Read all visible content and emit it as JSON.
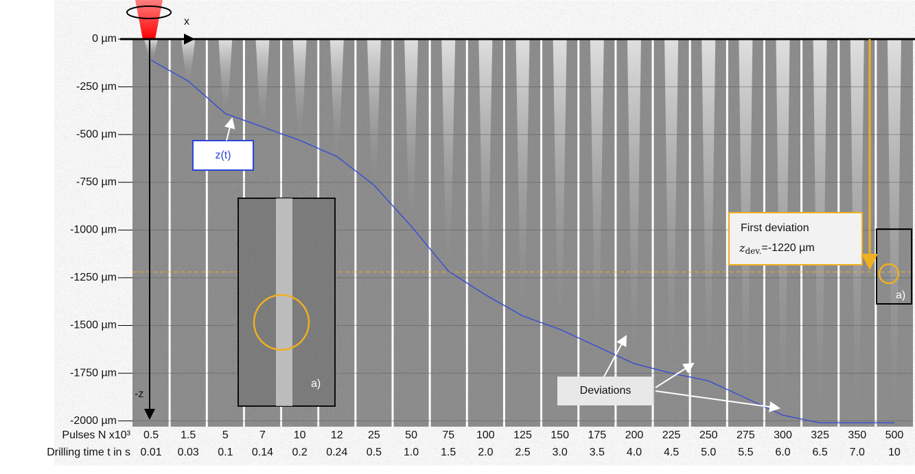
{
  "chart_data": {
    "type": "line",
    "x_row_label": "Pulses N x10³",
    "x_row2_label": "Drilling time t in s",
    "categories": [
      "0.5",
      "1.5",
      "5",
      "7",
      "10",
      "12",
      "25",
      "50",
      "75",
      "100",
      "125",
      "150",
      "175",
      "200",
      "225",
      "250",
      "275",
      "300",
      "325",
      "350",
      "500"
    ],
    "drilling_time": [
      "0.01",
      "0.03",
      "0.1",
      "0.14",
      "0.2",
      "0.24",
      "0.5",
      "1.0",
      "1.5",
      "2.0",
      "2.5",
      "3.0",
      "3.5",
      "4.0",
      "4.5",
      "5.0",
      "5.5",
      "6.0",
      "6.5",
      "7.0",
      "10"
    ],
    "series": [
      {
        "name": "z(t)",
        "color": "#3a4fd0",
        "values": [
          -110,
          -220,
          -390,
          -460,
          -530,
          -615,
          -765,
          -980,
          -1215,
          -1340,
          -1450,
          -1520,
          -1610,
          -1700,
          -1750,
          -1790,
          -1880,
          -1970,
          -2010,
          -2010,
          -2010
        ]
      }
    ],
    "ylim": [
      -2030,
      0
    ],
    "yticks": [
      {
        "value": 0,
        "label": "0 µm"
      },
      {
        "value": -250,
        "label": "-250 µm"
      },
      {
        "value": -500,
        "label": "-500 µm"
      },
      {
        "value": -750,
        "label": "-750 µm"
      },
      {
        "value": -1000,
        "label": "-1000 µm"
      },
      {
        "value": -1250,
        "label": "-1250 µm"
      },
      {
        "value": -1500,
        "label": "-1500 µm"
      },
      {
        "value": -1750,
        "label": "-1750 µm"
      },
      {
        "value": -2000,
        "label": "-2000 µm"
      }
    ],
    "grid": true,
    "first_deviation": {
      "value": -1220,
      "title": "First deviation",
      "symbol": "z",
      "subscript": "dev.",
      "text": "=-1220 µm",
      "color": "#f0b020"
    },
    "annotations": {
      "x_axis": "x",
      "z_axis": "-z",
      "deviations": "Deviations",
      "inset_label": "a)",
      "right_label": "a)"
    }
  }
}
